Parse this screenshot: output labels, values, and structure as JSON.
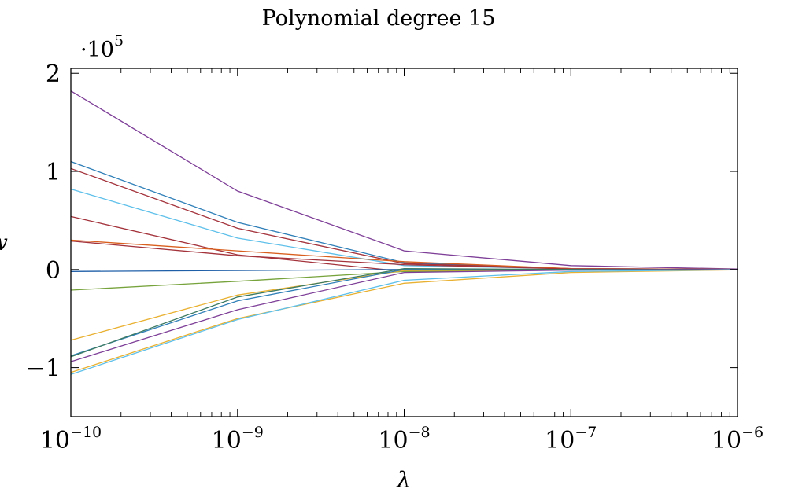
{
  "chart_data": {
    "type": "line",
    "title": "Polynomial degree 15",
    "xlabel": "λ",
    "ylabel": "w",
    "x_scale": "log",
    "x": [
      1e-10,
      1e-09,
      1e-08,
      1e-07,
      1e-06
    ],
    "xlim": [
      1e-10,
      1e-06
    ],
    "ylim": [
      -1.5,
      2.05
    ],
    "y_multiplier": "·10^5",
    "multiplier_base": "·10",
    "multiplier_exp": "5",
    "x_ticks": [
      {
        "base": "10",
        "exp": "−10"
      },
      {
        "base": "10",
        "exp": "−9"
      },
      {
        "base": "10",
        "exp": "−8"
      },
      {
        "base": "10",
        "exp": "−7"
      },
      {
        "base": "10",
        "exp": "−6"
      }
    ],
    "y_ticks": [
      {
        "value": 2,
        "label": "2"
      },
      {
        "value": 1,
        "label": "1"
      },
      {
        "value": 0,
        "label": "0"
      },
      {
        "value": -1,
        "label": "−1"
      }
    ],
    "grid": false,
    "legend": "none",
    "series": [
      {
        "color": "#7e3f98",
        "values": [
          1.82,
          0.8,
          0.19,
          0.04,
          0.005
        ]
      },
      {
        "color": "#2f7fb8",
        "values": [
          1.1,
          0.48,
          0.07,
          0.01,
          0.002
        ]
      },
      {
        "color": "#a3323b",
        "values": [
          1.03,
          0.42,
          0.06,
          0.01,
          0.002
        ]
      },
      {
        "color": "#5fc0ea",
        "values": [
          0.82,
          0.32,
          0.04,
          0.008,
          0.001
        ]
      },
      {
        "color": "#a3323b",
        "values": [
          0.54,
          0.15,
          -0.02,
          -0.005,
          0.0
        ]
      },
      {
        "color": "#d95f1e",
        "values": [
          0.3,
          0.19,
          0.08,
          0.01,
          0.001
        ]
      },
      {
        "color": "#a3323b",
        "values": [
          0.29,
          0.14,
          0.05,
          0.006,
          0.001
        ]
      },
      {
        "color": "#1f5fa8",
        "values": [
          -0.02,
          -0.01,
          0.0,
          0.0,
          0.0
        ]
      },
      {
        "color": "#77a33c",
        "values": [
          -0.21,
          -0.12,
          -0.02,
          -0.003,
          0.0
        ]
      },
      {
        "color": "#e9b132",
        "values": [
          -0.72,
          -0.26,
          -0.01,
          -0.003,
          0.0
        ]
      },
      {
        "color": "#2f7fb8",
        "values": [
          -0.88,
          -0.32,
          0.0,
          0.0,
          0.0
        ]
      },
      {
        "color": "#3c7a62",
        "values": [
          -0.89,
          -0.28,
          0.01,
          0.0,
          0.0
        ]
      },
      {
        "color": "#7e3f98",
        "values": [
          -0.94,
          -0.41,
          -0.03,
          -0.006,
          0.0
        ]
      },
      {
        "color": "#e9b132",
        "values": [
          -1.05,
          -0.5,
          -0.14,
          -0.03,
          -0.003
        ]
      },
      {
        "color": "#5fc0ea",
        "values": [
          -1.07,
          -0.51,
          -0.11,
          -0.02,
          -0.002
        ]
      }
    ]
  }
}
